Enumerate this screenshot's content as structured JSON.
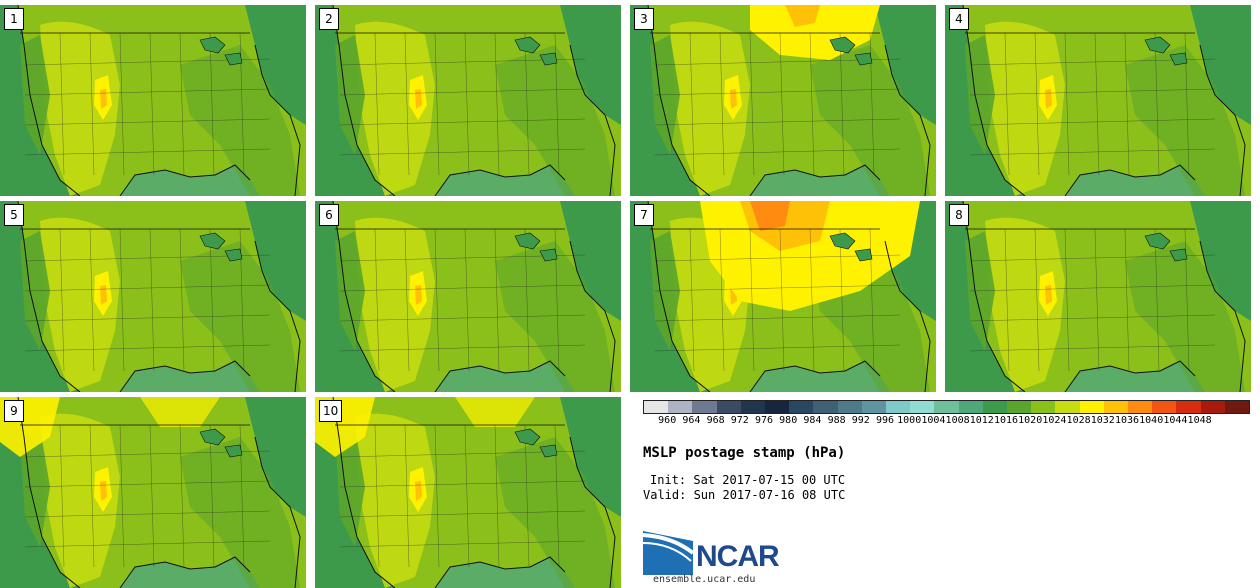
{
  "panels": [
    {
      "label": "1",
      "high_pressure": "none"
    },
    {
      "label": "2",
      "high_pressure": "none"
    },
    {
      "label": "3",
      "high_pressure": "moderate"
    },
    {
      "label": "4",
      "high_pressure": "none"
    },
    {
      "label": "5",
      "high_pressure": "none"
    },
    {
      "label": "6",
      "high_pressure": "none"
    },
    {
      "label": "7",
      "high_pressure": "strong"
    },
    {
      "label": "8",
      "high_pressure": "none"
    },
    {
      "label": "9",
      "high_pressure": "weak"
    },
    {
      "label": "10",
      "high_pressure": "weak"
    }
  ],
  "colorbar": {
    "labels": [
      "960",
      "964",
      "968",
      "972",
      "976",
      "980",
      "984",
      "988",
      "992",
      "996",
      "1000",
      "1004",
      "1008",
      "1012",
      "1016",
      "1020",
      "1024",
      "1028",
      "1032",
      "1036",
      "1040",
      "1044",
      "1048"
    ],
    "colors": [
      "#e6e6e6",
      "#aeb3c4",
      "#6f7a90",
      "#3a4b63",
      "#22354f",
      "#17263d",
      "#2b4660",
      "#3f6075",
      "#4f7a8a",
      "#5f95a0",
      "#7fc9c8",
      "#92dbd0",
      "#6fbf9c",
      "#4fa77a",
      "#3d9a4a",
      "#5aa52c",
      "#8bbf1a",
      "#c7dc10",
      "#fff200",
      "#ffc107",
      "#ff8c10",
      "#f25512",
      "#d62d10",
      "#a81a10",
      "#6e1a10"
    ]
  },
  "title": "MSLP postage stamp (hPa)",
  "init": "Init: Sat 2017-07-15 00 UTC",
  "valid": "Valid: Sun 2017-07-16 08 UTC",
  "logo": {
    "text": "NCAR",
    "url": "ensemble.ucar.edu"
  },
  "colors": {
    "ocean": "#3d9a4a",
    "land_base": "#8bbf1a",
    "light_land": "#c7dc10",
    "high": "#fff200",
    "higher": "#ffc107",
    "highest": "#ff8c10",
    "low_land": "#5aa52c",
    "teal": "#4fa77a"
  }
}
